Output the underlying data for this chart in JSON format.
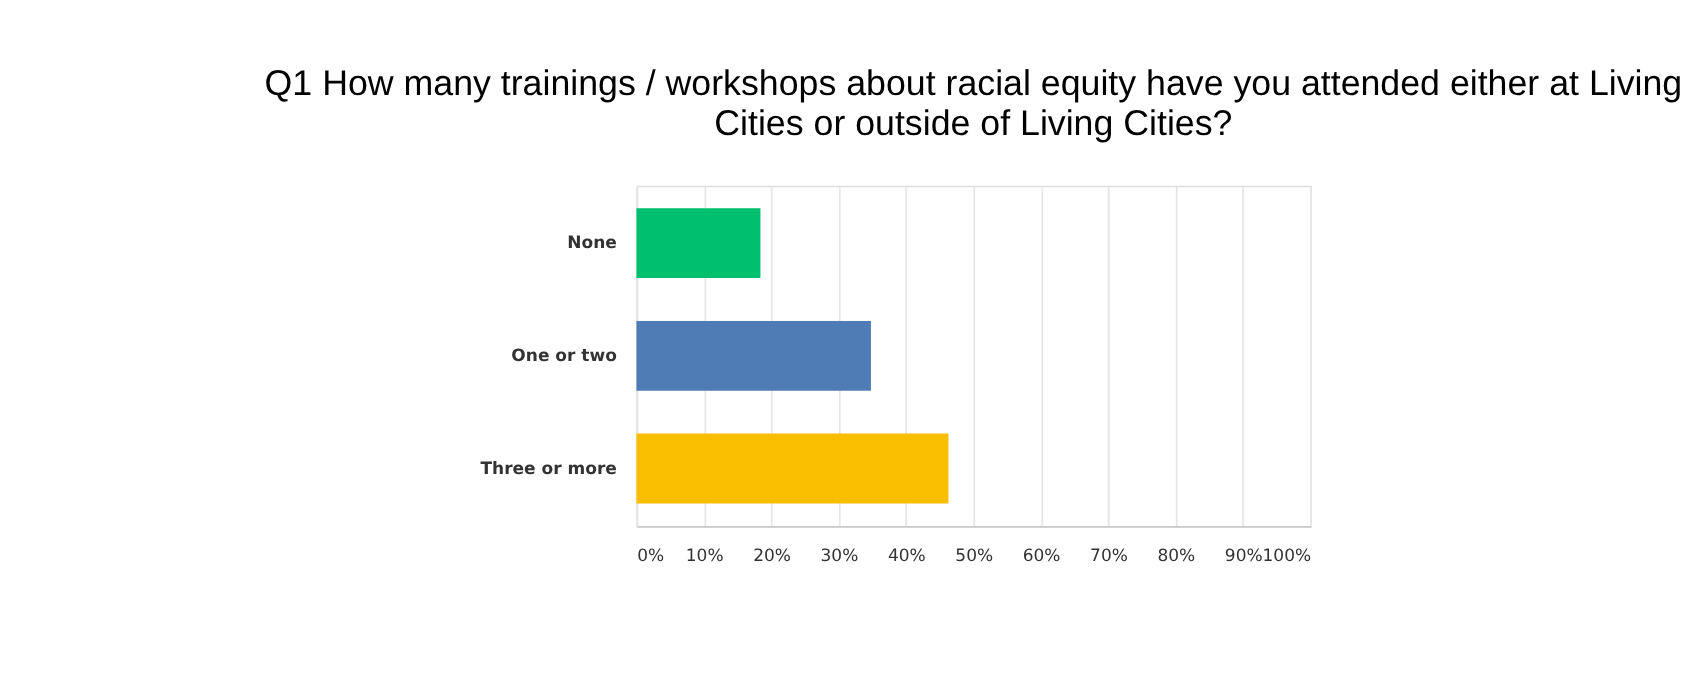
{
  "chart_data": {
    "type": "bar",
    "orientation": "horizontal",
    "title": [
      "Q1 How many trainings / workshops about racial equity have you attended either at Living",
      "Cities or outside of Living Cities?"
    ],
    "categories": [
      "None",
      "One or two",
      "Three or more"
    ],
    "values": [
      18.4,
      34.8,
      46.3
    ],
    "colors": [
      "#00bf6f",
      "#507cb6",
      "#f9be00"
    ],
    "xlim": [
      0,
      100
    ],
    "xticks": [
      {
        "value": 0,
        "label": "0%"
      },
      {
        "value": 10,
        "label": "10%"
      },
      {
        "value": 20,
        "label": "20%"
      },
      {
        "value": 30,
        "label": "30%"
      },
      {
        "value": 40,
        "label": "40%"
      },
      {
        "value": 50,
        "label": "50%"
      },
      {
        "value": 60,
        "label": "60%"
      },
      {
        "value": 70,
        "label": "70%"
      },
      {
        "value": 80,
        "label": "80%"
      },
      {
        "value": 90,
        "label": "90%"
      },
      {
        "value": 100,
        "label": "100%"
      }
    ],
    "grid": "x"
  }
}
